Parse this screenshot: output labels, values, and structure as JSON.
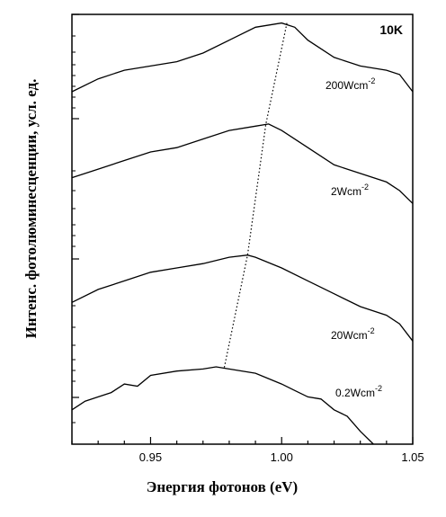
{
  "chart_data": {
    "type": "line",
    "title": "",
    "xlabel": "Энергия фотонов  (eV)",
    "ylabel": "Интенс. фотолюминесценции, усл. ед.",
    "annotation": "10K",
    "xlim": [
      0.92,
      1.05
    ],
    "x_ticks": [
      0.95,
      1.0,
      1.05
    ],
    "x_tick_labels": [
      "0.95",
      "1.00",
      "1.05"
    ],
    "ylim": [
      0,
      100
    ],
    "y_scale": "log",
    "y_tick_labels_shown": false,
    "grid": false,
    "series": [
      {
        "name": "200Wcm",
        "name_superscript": "-2",
        "peak_x": 1.002,
        "points": [
          [
            0.92,
            82
          ],
          [
            0.93,
            85
          ],
          [
            0.94,
            87
          ],
          [
            0.95,
            88
          ],
          [
            0.96,
            89
          ],
          [
            0.97,
            91
          ],
          [
            0.98,
            94
          ],
          [
            0.99,
            97
          ],
          [
            1.0,
            98
          ],
          [
            1.005,
            97
          ],
          [
            1.01,
            94
          ],
          [
            1.02,
            90
          ],
          [
            1.03,
            88
          ],
          [
            1.04,
            87
          ],
          [
            1.045,
            86
          ],
          [
            1.05,
            82
          ]
        ]
      },
      {
        "name": "2Wcm",
        "name_superscript": "-2",
        "peak_x": 0.994,
        "points": [
          [
            0.92,
            62
          ],
          [
            0.93,
            64
          ],
          [
            0.94,
            66
          ],
          [
            0.95,
            68
          ],
          [
            0.96,
            69
          ],
          [
            0.97,
            71
          ],
          [
            0.98,
            73
          ],
          [
            0.99,
            74
          ],
          [
            0.995,
            74.5
          ],
          [
            1.0,
            73
          ],
          [
            1.01,
            69
          ],
          [
            1.02,
            65
          ],
          [
            1.03,
            63
          ],
          [
            1.04,
            61
          ],
          [
            1.045,
            59
          ],
          [
            1.05,
            56
          ]
        ]
      },
      {
        "name": "20Wcm",
        "name_superscript": "-2",
        "peak_x": 0.987,
        "points": [
          [
            0.92,
            33
          ],
          [
            0.93,
            36
          ],
          [
            0.94,
            38
          ],
          [
            0.95,
            40
          ],
          [
            0.96,
            41
          ],
          [
            0.97,
            42
          ],
          [
            0.98,
            43.5
          ],
          [
            0.987,
            44
          ],
          [
            0.99,
            43.5
          ],
          [
            1.0,
            41
          ],
          [
            1.01,
            38
          ],
          [
            1.02,
            35
          ],
          [
            1.03,
            32
          ],
          [
            1.04,
            30
          ],
          [
            1.045,
            28
          ],
          [
            1.05,
            24
          ]
        ]
      },
      {
        "name": "0.2Wcm",
        "name_superscript": "-2",
        "peak_x": 0.978,
        "points": [
          [
            0.92,
            8
          ],
          [
            0.925,
            10
          ],
          [
            0.93,
            11
          ],
          [
            0.935,
            12
          ],
          [
            0.94,
            14
          ],
          [
            0.945,
            13.5
          ],
          [
            0.95,
            16
          ],
          [
            0.96,
            17
          ],
          [
            0.97,
            17.5
          ],
          [
            0.975,
            18
          ],
          [
            0.98,
            17.5
          ],
          [
            0.99,
            16.5
          ],
          [
            1.0,
            14
          ],
          [
            1.005,
            12.5
          ],
          [
            1.01,
            11
          ],
          [
            1.015,
            10.5
          ],
          [
            1.02,
            8
          ],
          [
            1.025,
            6.5
          ],
          [
            1.03,
            3
          ],
          [
            1.035,
            0
          ]
        ]
      }
    ]
  }
}
